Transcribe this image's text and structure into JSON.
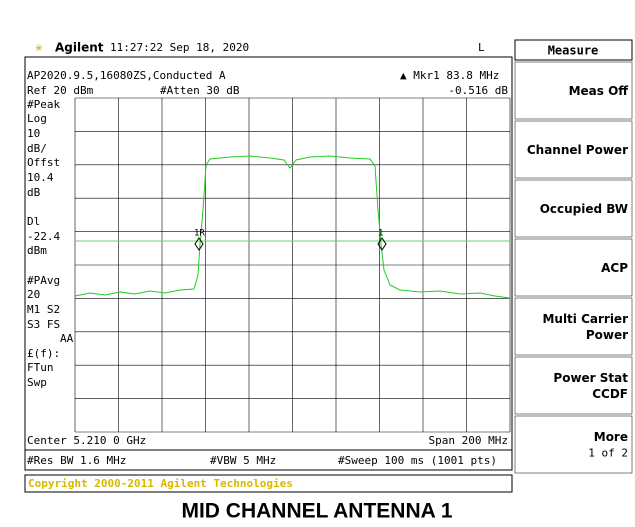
{
  "header": {
    "brand": "Agilent",
    "time": "11:27:22  Sep 18, 2020",
    "mode": "L"
  },
  "screen": {
    "line1": "AP2020.9.5,16080ZS,Conducted A",
    "marker": "Mkr1  83.8 MHz",
    "ref": "Ref 20 dBm",
    "atten": "#Atten 30 dB",
    "marker_value": "-0.516 dB",
    "left_labels": [
      "#Peak",
      "Log",
      "10",
      "dB/",
      "Offst",
      "10.4",
      "dB",
      "Dl",
      "-22.4",
      "dBm",
      "#PAvg",
      "20",
      "M1  S2",
      "S3  FS",
      "AA",
      "£(f):",
      "FTun",
      "Swp"
    ],
    "marker_labels": [
      "1R",
      "1"
    ],
    "center": "Center 5.210 0 GHz",
    "span": "Span 200 MHz",
    "rbw": "#Res BW 1.6 MHz",
    "vbw": "#VBW 5 MHz",
    "sweep": "#Sweep 100 ms (1001 pts)"
  },
  "softkeys": {
    "title": "Measure",
    "keys": [
      [
        "Meas Off"
      ],
      [
        "Channel Power"
      ],
      [
        "Occupied BW"
      ],
      [
        "ACP"
      ],
      [
        "Multi Carrier",
        "Power"
      ],
      [
        "Power Stat",
        "CCDF"
      ],
      [
        "More",
        "1 of 2"
      ]
    ]
  },
  "copyright": "Copyright 2000-2011 Agilent Technologies",
  "caption": "MID CHANNEL ANTENNA 1"
}
